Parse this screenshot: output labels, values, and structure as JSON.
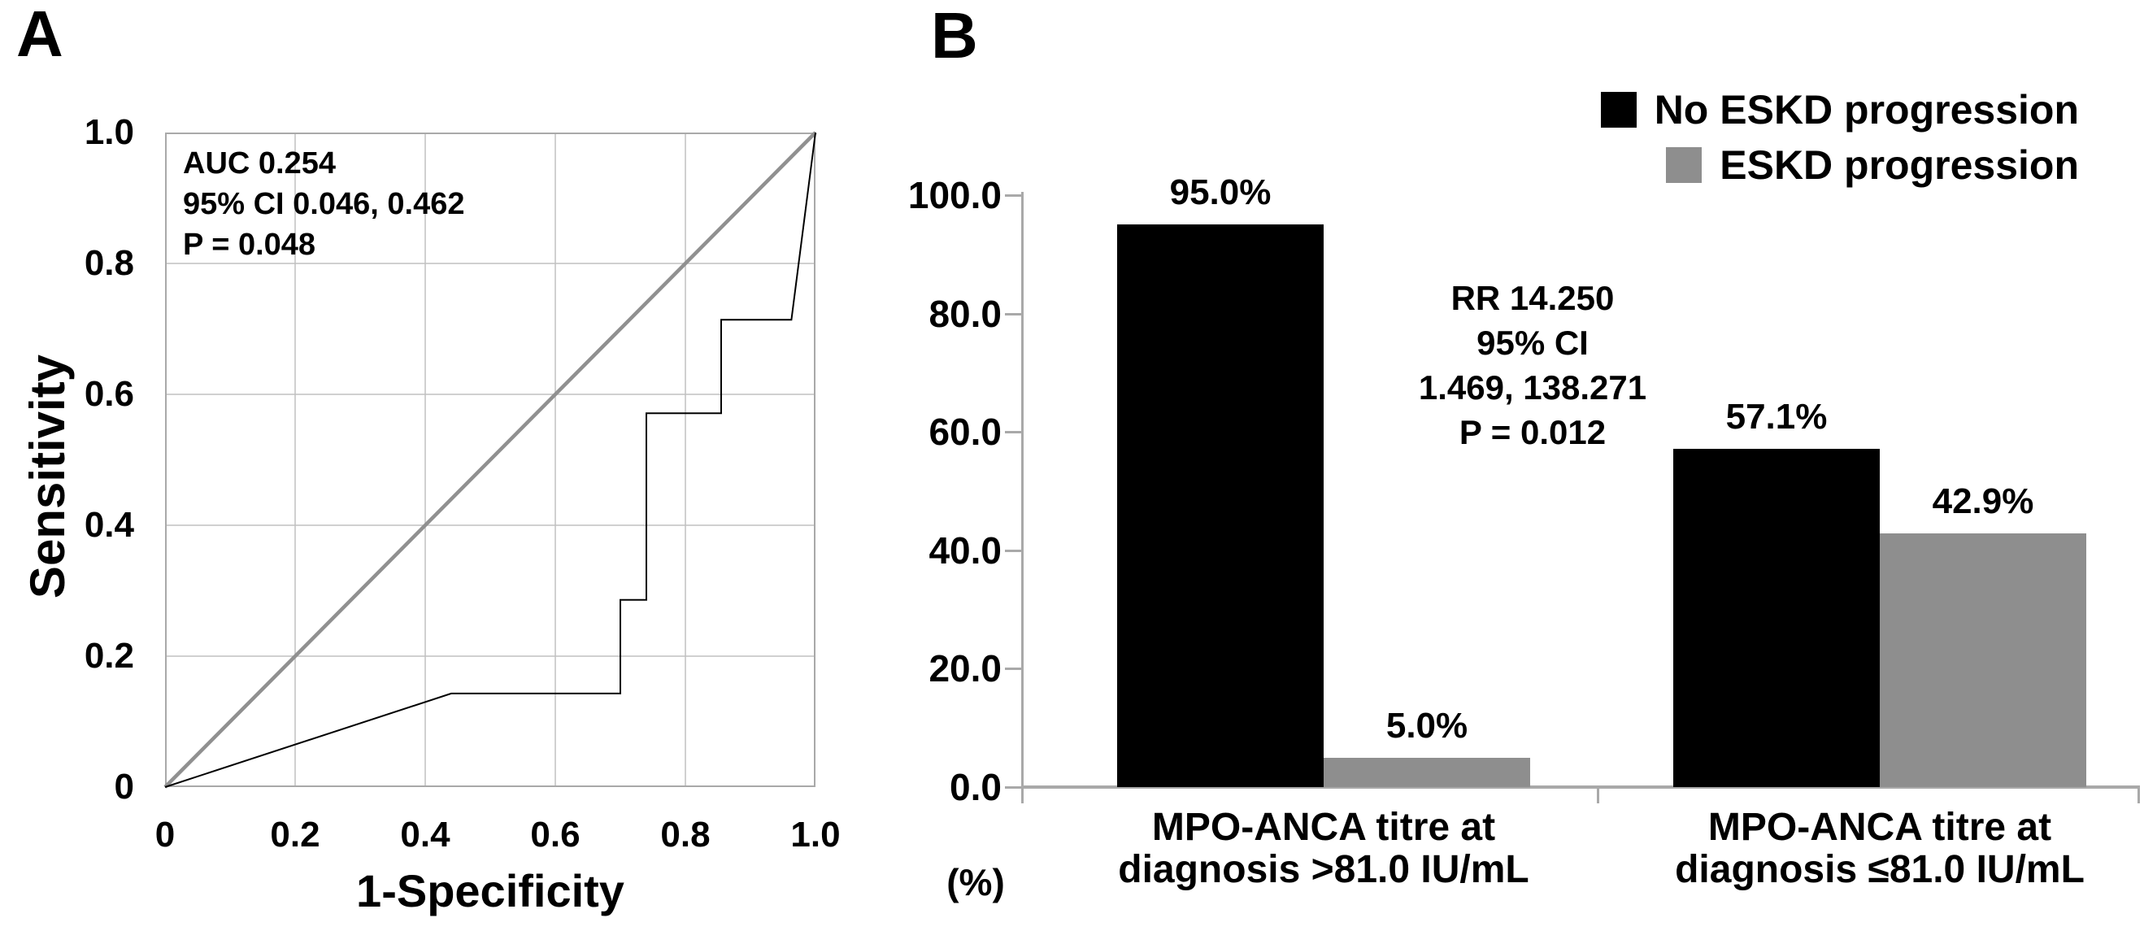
{
  "panels": {
    "a": {
      "label": "A"
    },
    "b": {
      "label": "B"
    }
  },
  "colors": {
    "series_black": "#000000",
    "series_gray": "#8e8e8e",
    "axis_gray": "#a9a9a9",
    "grid_gray": "#c0c0c0",
    "diagonal_gray": "#909090"
  },
  "chart_data": [
    {
      "type": "line",
      "panel": "A",
      "title": "",
      "xlabel": "1-Specificity",
      "ylabel": "Sensitivity",
      "xlim": [
        0,
        1
      ],
      "ylim": [
        0,
        1
      ],
      "grid": true,
      "x_ticks": {
        "values": [
          0,
          0.2,
          0.4,
          0.6,
          0.8,
          1.0
        ],
        "labels": [
          "0",
          "0.2",
          "0.4",
          "0.6",
          "0.8",
          "1.0"
        ]
      },
      "y_ticks": {
        "values": [
          0,
          0.2,
          0.4,
          0.6,
          0.8,
          1.0
        ],
        "labels": [
          "0",
          "0.2",
          "0.4",
          "0.6",
          "0.8",
          "1.0"
        ]
      },
      "annotation_lines": [
        "AUC 0.254",
        "95% CI 0.046, 0.462",
        "P = 0.048"
      ],
      "series": [
        {
          "name": "ROC curve",
          "color": "#000000",
          "points": [
            [
              0,
              0
            ],
            [
              0.44,
              0.143
            ],
            [
              0.7,
              0.143
            ],
            [
              0.7,
              0.286
            ],
            [
              0.74,
              0.286
            ],
            [
              0.74,
              0.571
            ],
            [
              0.855,
              0.571
            ],
            [
              0.855,
              0.714
            ],
            [
              0.963,
              0.714
            ],
            [
              1.0,
              1.0
            ]
          ]
        },
        {
          "name": "reference diagonal",
          "color": "#909090",
          "points": [
            [
              0,
              0
            ],
            [
              1,
              1
            ]
          ]
        }
      ]
    },
    {
      "type": "bar",
      "panel": "B",
      "title": "",
      "unit_label": "(%)",
      "ylim": [
        0,
        100
      ],
      "y_ticks": {
        "values": [
          100,
          80,
          60,
          40,
          20,
          0
        ],
        "labels": [
          "100.0",
          "80.0",
          "60.0",
          "40.0",
          "20.0",
          "0.0"
        ]
      },
      "categories": [
        "MPO-ANCA titre at diagnosis >81.0 IU/mL",
        "MPO-ANCA titre at diagnosis ≤81.0 IU/mL"
      ],
      "category_lines": [
        [
          "MPO-ANCA titre at",
          "diagnosis >81.0 IU/mL"
        ],
        [
          "MPO-ANCA titre at",
          "diagnosis ≤81.0 IU/mL"
        ]
      ],
      "series": [
        {
          "name": "No ESKD progression",
          "color": "#000000",
          "values": [
            95.0,
            57.1
          ],
          "value_labels": [
            "95.0%",
            "57.1%"
          ]
        },
        {
          "name": "ESKD progression",
          "color": "#8e8e8e",
          "values": [
            5.0,
            42.9
          ],
          "value_labels": [
            "5.0%",
            "42.9%"
          ]
        }
      ],
      "annotation_lines": [
        "RR 14.250",
        "95% CI",
        "1.469, 138.271",
        "P = 0.012"
      ],
      "legend": {
        "position": "top-right"
      }
    }
  ]
}
